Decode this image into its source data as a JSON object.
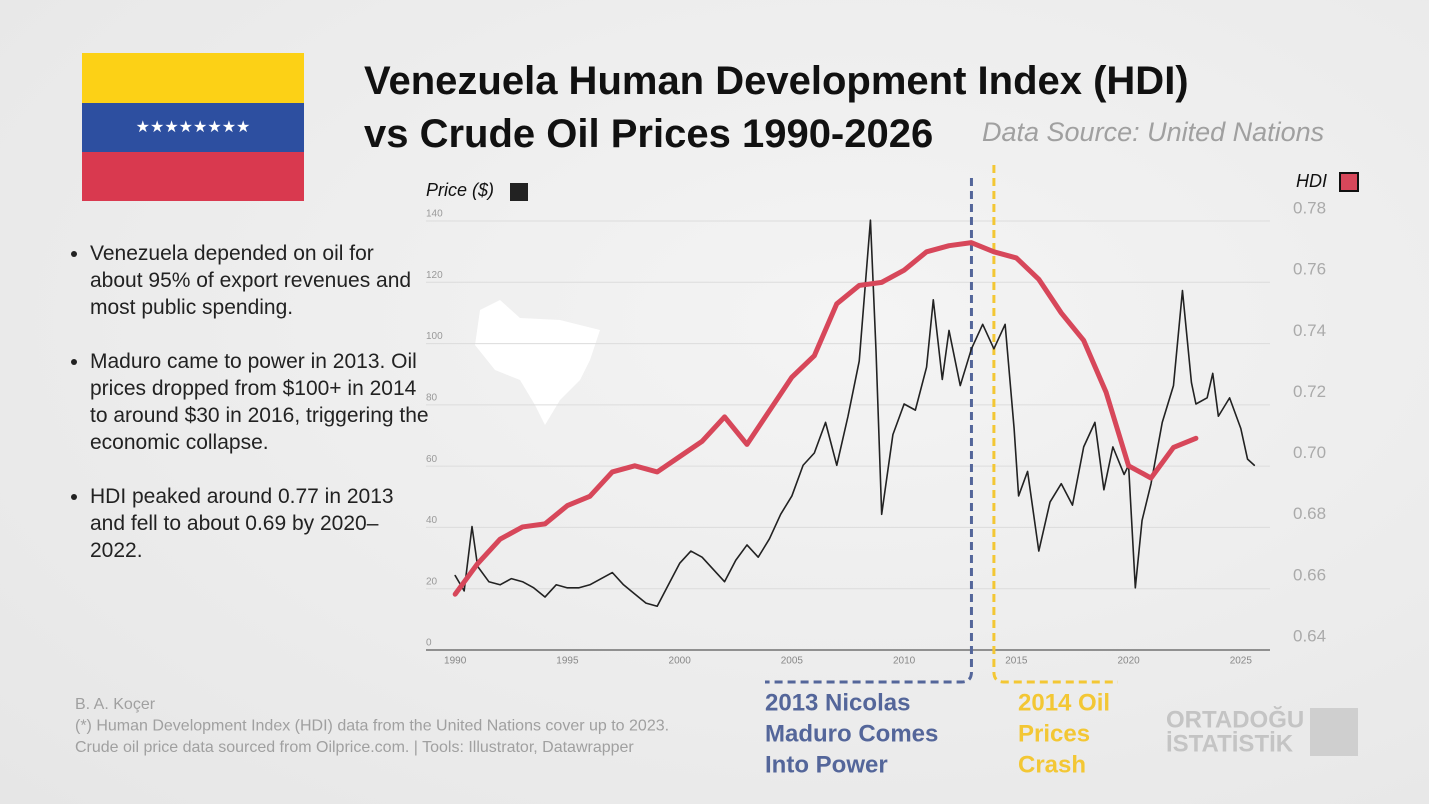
{
  "chart_data": {
    "type": "line",
    "title": [
      "Venezuela Human Development Index (HDI)",
      "vs Crude Oil Prices 1990-2026"
    ],
    "subtitle": "Data Source: United Nations",
    "bullets": [
      "Venezuela depended on oil for about 95% of export revenues and most public spending.",
      "Maduro came to power in 2013. Oil prices dropped from $100+ in 2014 to around $30 in 2016, triggering the economic collapse.",
      "HDI peaked around 0.77 in 2013 and fell to about 0.69 by 2020–2022."
    ],
    "footer": [
      "B. A. Koçer",
      "(*) Human Development Index (HDI) data from the United Nations cover up to 2023.",
      "Crude oil price data sourced from Oilprice.com. | Tools: Illustrator, Datawrapper"
    ],
    "logo": [
      "ORTADOĞU",
      "İSTATİSTİK"
    ],
    "xlim": [
      1988.7,
      2026.3
    ],
    "xticks": [
      1990,
      1995,
      2000,
      2005,
      2010,
      2015,
      2020,
      2025
    ],
    "ylim": [
      0,
      140
    ],
    "yticks": [
      0,
      20,
      40,
      60,
      80,
      100,
      120,
      140
    ],
    "y2lim": [
      0.64,
      0.78
    ],
    "y2ticks": [
      {
        "value": 0.64,
        "label": "0.64"
      },
      {
        "value": 0.66,
        "label": "0.66"
      },
      {
        "value": 0.68,
        "label": "0.68"
      },
      {
        "value": 0.7,
        "label": "0.70"
      },
      {
        "value": 0.72,
        "label": "0.72"
      },
      {
        "value": 0.74,
        "label": "0.74"
      },
      {
        "value": 0.76,
        "label": "0.76"
      },
      {
        "value": 0.78,
        "label": "0.78"
      }
    ],
    "grid": true,
    "series": [
      {
        "name": "Price ($)",
        "color": "#222222",
        "axis": "y",
        "x": [
          1990.0,
          1990.4,
          1990.75,
          1991.0,
          1991.5,
          1992,
          1992.5,
          1993,
          1993.5,
          1994,
          1994.5,
          1995,
          1995.5,
          1996,
          1996.5,
          1997,
          1997.5,
          1998,
          1998.5,
          1999,
          1999.5,
          2000,
          2000.5,
          2001,
          2001.5,
          2002,
          2002.5,
          2003,
          2003.5,
          2004,
          2004.5,
          2005,
          2005.5,
          2006,
          2006.5,
          2007,
          2007.5,
          2008,
          2008.5,
          2008.75,
          2009,
          2009.5,
          2010,
          2010.5,
          2011,
          2011.3,
          2011.7,
          2012,
          2012.5,
          2013,
          2013.5,
          2014,
          2014.5,
          2014.9,
          2015.1,
          2015.5,
          2016,
          2016.5,
          2017,
          2017.5,
          2018,
          2018.5,
          2018.9,
          2019.3,
          2019.8,
          2020.0,
          2020.3,
          2020.6,
          2021,
          2021.5,
          2022,
          2022.4,
          2022.8,
          2023,
          2023.5,
          2023.75,
          2024,
          2024.5,
          2025,
          2025.3,
          2025.6
        ],
        "values": [
          22,
          17,
          38,
          25,
          20,
          19,
          21,
          20,
          18,
          15,
          19,
          18,
          18,
          19,
          21,
          23,
          19,
          16,
          13,
          12,
          19,
          26,
          30,
          28,
          24,
          20,
          27,
          32,
          28,
          34,
          42,
          48,
          58,
          62,
          72,
          58,
          74,
          92,
          138,
          95,
          42,
          68,
          78,
          76,
          90,
          112,
          86,
          102,
          84,
          96,
          104,
          96,
          104,
          70,
          48,
          56,
          30,
          46,
          52,
          45,
          64,
          72,
          50,
          64,
          55,
          58,
          18,
          40,
          52,
          72,
          84,
          115,
          85,
          78,
          80,
          88,
          74,
          80,
          70,
          60,
          58
        ]
      },
      {
        "name": "HDI",
        "color": "#d7475a",
        "axis": "y2",
        "x": [
          1990,
          1991,
          1992,
          1993,
          1994,
          1995,
          1996,
          1997,
          1998,
          1999,
          2000,
          2001,
          2002,
          2003,
          2004,
          2005,
          2006,
          2007,
          2008,
          2009,
          2010,
          2011,
          2012,
          2013,
          2014,
          2015,
          2016,
          2017,
          2018,
          2019,
          2020,
          2021,
          2022,
          2023
        ],
        "values": [
          0.654,
          0.664,
          0.672,
          0.676,
          0.677,
          0.683,
          0.686,
          0.694,
          0.696,
          0.694,
          0.699,
          0.704,
          0.712,
          0.703,
          0.714,
          0.725,
          0.732,
          0.749,
          0.755,
          0.756,
          0.76,
          0.766,
          0.768,
          0.769,
          0.766,
          0.764,
          0.757,
          0.746,
          0.737,
          0.72,
          0.696,
          0.692,
          0.702,
          0.705
        ]
      }
    ],
    "annotations": [
      {
        "x": 2013,
        "color": "#54669a",
        "text": [
          "2013 Nicolas",
          "Maduro Comes",
          "Into Power"
        ]
      },
      {
        "x": 2014,
        "color": "#f3c734",
        "text": [
          "2014 Oil",
          "Prices",
          "Crash"
        ]
      }
    ]
  }
}
